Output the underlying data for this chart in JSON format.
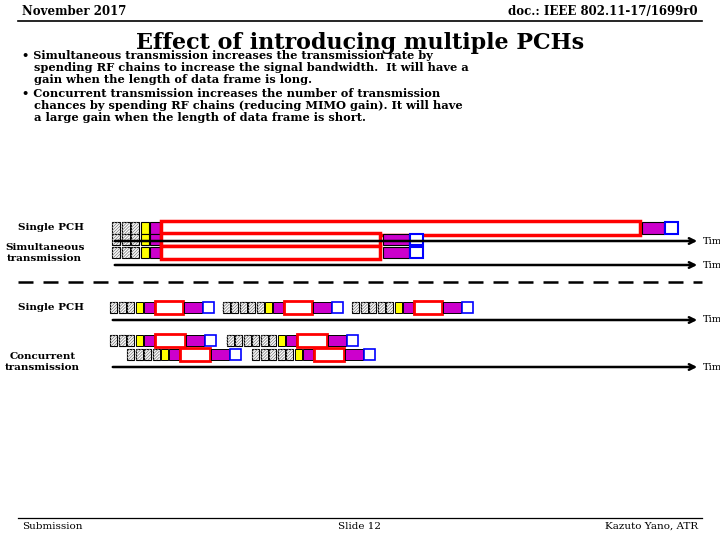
{
  "title": "Effect of introducing multiple PCHs",
  "header_left": "November 2017",
  "header_right": "doc.: IEEE 802.11-17/1699r0",
  "bullet1_line1": "• Simultaneous transmission increases the transmission rate by",
  "bullet1_line2": "   spending RF chains to increase the signal bandwidth.  It will have a",
  "bullet1_line3": "   gain when the length of data frame is long.",
  "bullet2_line1": "• Concurrent transmission increases the number of transmission",
  "bullet2_line2": "   chances by spending RF chains (reducing MIMO gain). It will have",
  "bullet2_line3": "   a large gain when the length of data frame is short.",
  "footer_left": "Submission",
  "footer_center": "Slide 12",
  "footer_right": "Kazuto Yano, ATR",
  "bg_color": "#ffffff",
  "text_color": "#000000",
  "magenta": "#cc00cc",
  "red": "#ff0000",
  "blue": "#0000ff",
  "yellow": "#ffff00",
  "white": "#ffffff"
}
